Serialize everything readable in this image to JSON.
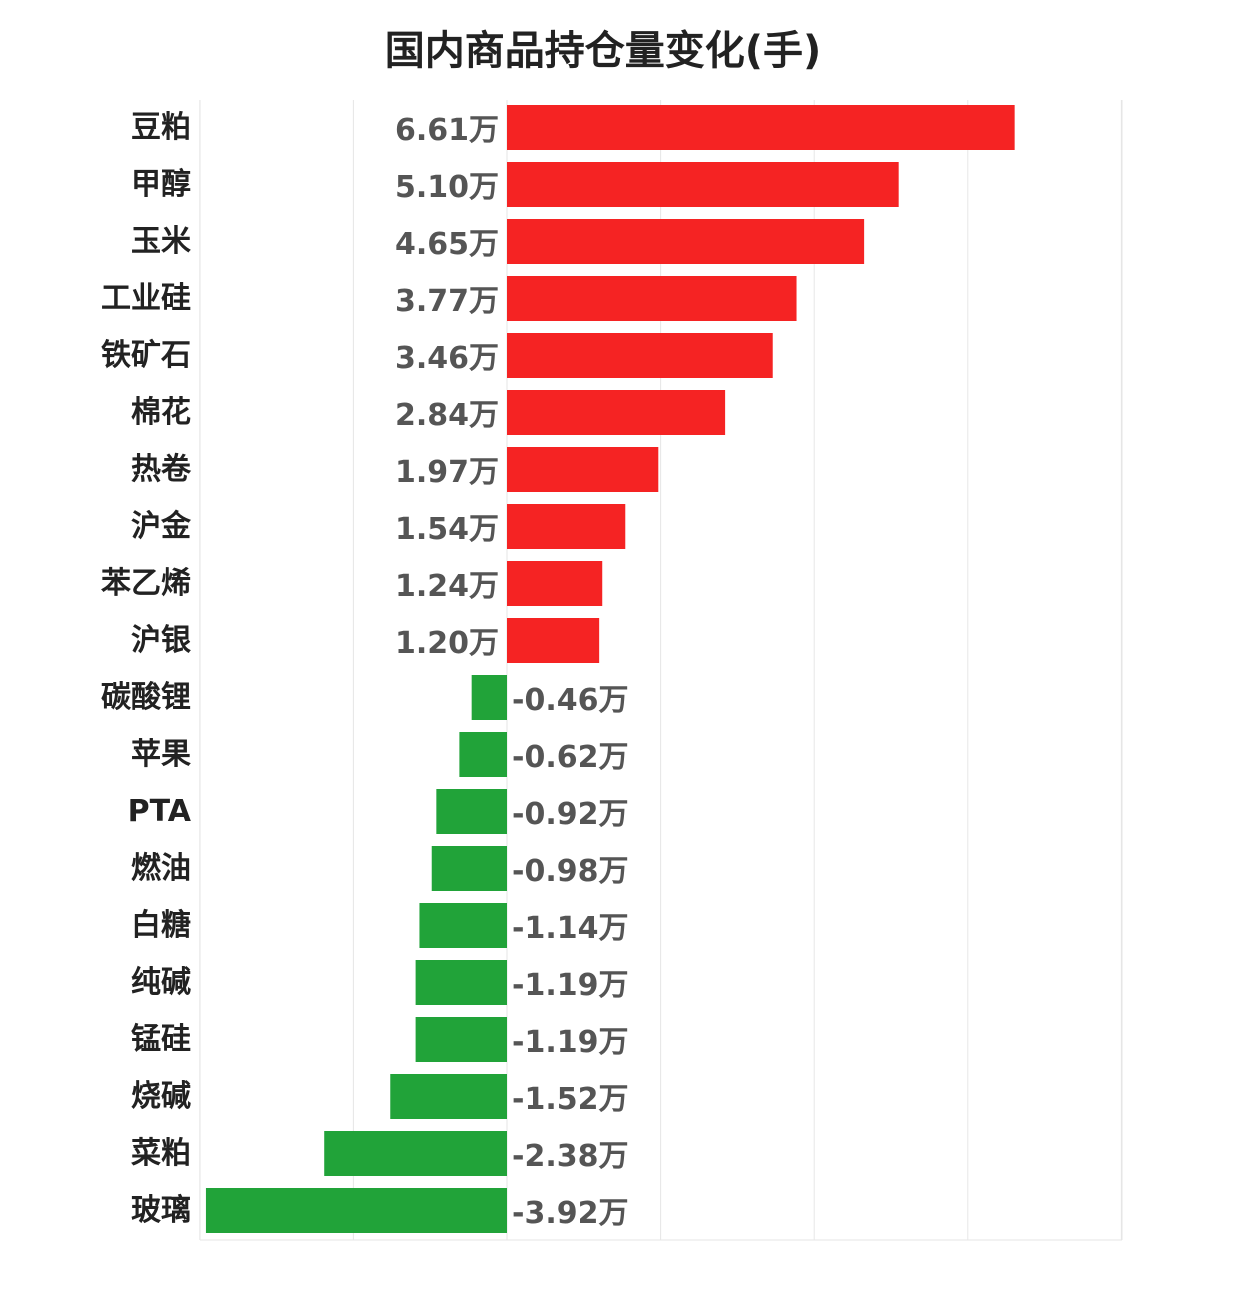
{
  "chart_data": {
    "type": "bar",
    "orientation": "horizontal",
    "title": "国内商品持仓量变化(手)",
    "value_unit_suffix": "万",
    "categories": [
      "豆粕",
      "甲醇",
      "玉米",
      "工业硅",
      "铁矿石",
      "棉花",
      "热卷",
      "沪金",
      "苯乙烯",
      "沪银",
      "碳酸锂",
      "苹果",
      "PTA",
      "燃油",
      "白糖",
      "纯碱",
      "锰硅",
      "烧碱",
      "菜粕",
      "玻璃"
    ],
    "values": [
      6.61,
      5.1,
      4.65,
      3.77,
      3.46,
      2.84,
      1.97,
      1.54,
      1.24,
      1.2,
      -0.46,
      -0.62,
      -0.92,
      -0.98,
      -1.14,
      -1.19,
      -1.19,
      -1.52,
      -2.38,
      -3.92
    ],
    "value_labels": [
      "6.61万",
      "5.10万",
      "4.65万",
      "3.77万",
      "3.46万",
      "2.84万",
      "1.97万",
      "1.54万",
      "1.24万",
      "1.20万",
      "-0.46万",
      "-0.62万",
      "-0.92万",
      "-0.98万",
      "-1.14万",
      "-1.19万",
      "-1.19万",
      "-1.52万",
      "-2.38万",
      "-3.92万"
    ],
    "xlim": [
      -4,
      8
    ],
    "grid": true,
    "colors": {
      "positive": "#f52323",
      "negative": "#21a339",
      "grid": "#e6e6e6"
    }
  }
}
